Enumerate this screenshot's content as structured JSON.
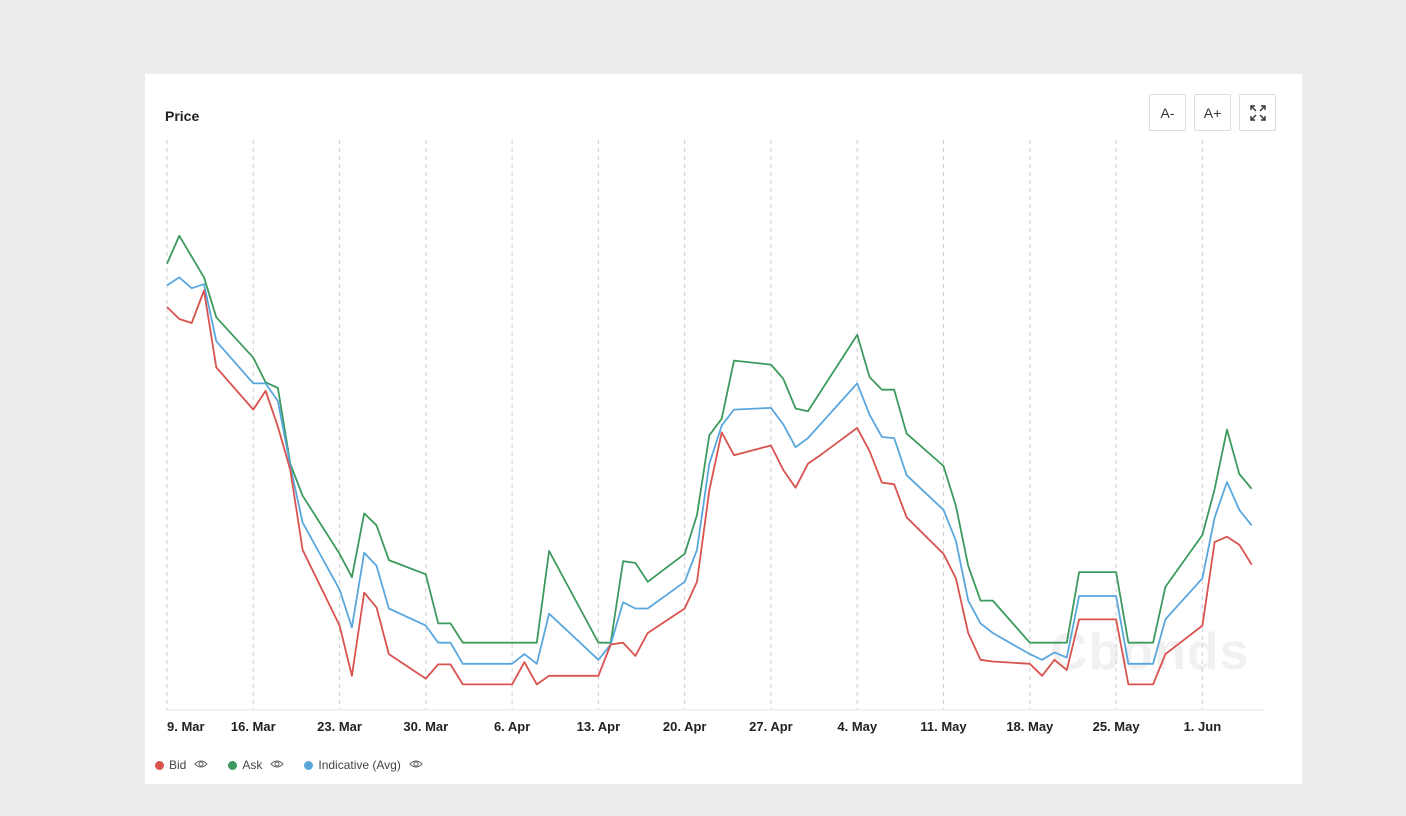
{
  "card": {
    "title": "Price"
  },
  "toolbar": {
    "font_decrease": "A-",
    "font_increase": "A+",
    "fullscreen_icon": "expand-icon"
  },
  "watermark": "Cbonds",
  "colors": {
    "bid": "#d9534f",
    "ask": "#3d9a5f",
    "indicative": "#5aa7de",
    "grid": "#cfcfcf",
    "axis": "#222222"
  },
  "chart_data": {
    "type": "line",
    "title": "Price",
    "xlabel": "",
    "ylabel": "",
    "grid": "vertical dashed",
    "legend": "bottom-left",
    "x_axis": {
      "start": "2020-03-09",
      "end": "2020-06-06",
      "ticks": [
        {
          "date": "2020-03-09",
          "label": "9. Mar"
        },
        {
          "date": "2020-03-16",
          "label": "16. Mar"
        },
        {
          "date": "2020-03-23",
          "label": "23. Mar"
        },
        {
          "date": "2020-03-30",
          "label": "30. Mar"
        },
        {
          "date": "2020-04-06",
          "label": "6. Apr"
        },
        {
          "date": "2020-04-13",
          "label": "13. Apr"
        },
        {
          "date": "2020-04-20",
          "label": "20. Apr"
        },
        {
          "date": "2020-04-27",
          "label": "27. Apr"
        },
        {
          "date": "2020-05-04",
          "label": "4. May"
        },
        {
          "date": "2020-05-11",
          "label": "11. May"
        },
        {
          "date": "2020-05-18",
          "label": "18. May"
        },
        {
          "date": "2020-05-25",
          "label": "25. May"
        },
        {
          "date": "2020-06-01",
          "label": "1. Jun"
        }
      ]
    },
    "y_axis": {
      "visible": false,
      "ylim": [
        0,
        100
      ]
    },
    "series": [
      {
        "name": "Bid",
        "color": "#d9534f",
        "points": [
          [
            "2020-03-09",
            70.7
          ],
          [
            "2020-03-10",
            68.6
          ],
          [
            "2020-03-11",
            67.9
          ],
          [
            "2020-03-12",
            73.6
          ],
          [
            "2020-03-13",
            60.1
          ],
          [
            "2020-03-16",
            52.7
          ],
          [
            "2020-03-17",
            56.0
          ],
          [
            "2020-03-18",
            49.7
          ],
          [
            "2020-03-19",
            42.1
          ],
          [
            "2020-03-20",
            28.1
          ],
          [
            "2020-03-23",
            14.8
          ],
          [
            "2020-03-24",
            6.0
          ],
          [
            "2020-03-25",
            20.6
          ],
          [
            "2020-03-26",
            18.0
          ],
          [
            "2020-03-27",
            9.8
          ],
          [
            "2020-03-30",
            5.5
          ],
          [
            "2020-03-31",
            8.0
          ],
          [
            "2020-04-01",
            8.0
          ],
          [
            "2020-04-02",
            4.5
          ],
          [
            "2020-04-03",
            4.5
          ],
          [
            "2020-04-06",
            4.5
          ],
          [
            "2020-04-07",
            8.4
          ],
          [
            "2020-04-08",
            4.5
          ],
          [
            "2020-04-09",
            6.0
          ],
          [
            "2020-04-10",
            6.0
          ],
          [
            "2020-04-13",
            6.0
          ],
          [
            "2020-04-14",
            11.5
          ],
          [
            "2020-04-15",
            11.8
          ],
          [
            "2020-04-16",
            9.5
          ],
          [
            "2020-04-17",
            13.5
          ],
          [
            "2020-04-20",
            17.8
          ],
          [
            "2020-04-21",
            22.5
          ],
          [
            "2020-04-22",
            38.5
          ],
          [
            "2020-04-23",
            48.7
          ],
          [
            "2020-04-24",
            44.7
          ],
          [
            "2020-04-27",
            46.4
          ],
          [
            "2020-04-28",
            42.1
          ],
          [
            "2020-04-29",
            39.0
          ],
          [
            "2020-04-30",
            43.2
          ],
          [
            "2020-05-01",
            44.7
          ],
          [
            "2020-05-04",
            49.5
          ],
          [
            "2020-05-05",
            45.4
          ],
          [
            "2020-05-06",
            39.9
          ],
          [
            "2020-05-07",
            39.6
          ],
          [
            "2020-05-08",
            33.8
          ],
          [
            "2020-05-11",
            27.4
          ],
          [
            "2020-05-12",
            23.1
          ],
          [
            "2020-05-13",
            13.5
          ],
          [
            "2020-05-14",
            8.8
          ],
          [
            "2020-05-15",
            8.5
          ],
          [
            "2020-05-18",
            8.1
          ],
          [
            "2020-05-19",
            6.0
          ],
          [
            "2020-05-20",
            8.8
          ],
          [
            "2020-05-21",
            7.0
          ],
          [
            "2020-05-22",
            15.9
          ],
          [
            "2020-05-25",
            15.9
          ],
          [
            "2020-05-26",
            4.5
          ],
          [
            "2020-05-27",
            4.5
          ],
          [
            "2020-05-28",
            4.5
          ],
          [
            "2020-05-29",
            9.8
          ],
          [
            "2020-06-01",
            14.8
          ],
          [
            "2020-06-02",
            29.5
          ],
          [
            "2020-06-03",
            30.4
          ],
          [
            "2020-06-04",
            29.0
          ],
          [
            "2020-06-05",
            25.5
          ]
        ]
      },
      {
        "name": "Ask",
        "color": "#3d9a5f",
        "points": [
          [
            "2020-03-09",
            78.3
          ],
          [
            "2020-03-10",
            83.2
          ],
          [
            "2020-03-12",
            75.9
          ],
          [
            "2020-03-13",
            68.9
          ],
          [
            "2020-03-16",
            61.8
          ],
          [
            "2020-03-17",
            57.5
          ],
          [
            "2020-03-18",
            56.5
          ],
          [
            "2020-03-19",
            43.2
          ],
          [
            "2020-03-20",
            37.6
          ],
          [
            "2020-03-23",
            27.4
          ],
          [
            "2020-03-24",
            23.3
          ],
          [
            "2020-03-25",
            34.5
          ],
          [
            "2020-03-26",
            32.4
          ],
          [
            "2020-03-27",
            26.3
          ],
          [
            "2020-03-30",
            23.8
          ],
          [
            "2020-03-31",
            15.2
          ],
          [
            "2020-04-01",
            15.2
          ],
          [
            "2020-04-02",
            11.8
          ],
          [
            "2020-04-06",
            11.8
          ],
          [
            "2020-04-07",
            11.8
          ],
          [
            "2020-04-08",
            11.8
          ],
          [
            "2020-04-09",
            27.9
          ],
          [
            "2020-04-13",
            11.8
          ],
          [
            "2020-04-14",
            11.8
          ],
          [
            "2020-04-15",
            26.1
          ],
          [
            "2020-04-16",
            25.8
          ],
          [
            "2020-04-17",
            22.5
          ],
          [
            "2020-04-20",
            27.4
          ],
          [
            "2020-04-21",
            34.2
          ],
          [
            "2020-04-22",
            48.2
          ],
          [
            "2020-04-23",
            51.1
          ],
          [
            "2020-04-24",
            61.3
          ],
          [
            "2020-04-27",
            60.6
          ],
          [
            "2020-04-28",
            58.1
          ],
          [
            "2020-04-29",
            52.9
          ],
          [
            "2020-04-30",
            52.4
          ],
          [
            "2020-05-04",
            65.8
          ],
          [
            "2020-05-05",
            58.4
          ],
          [
            "2020-05-06",
            56.2
          ],
          [
            "2020-05-07",
            56.2
          ],
          [
            "2020-05-08",
            48.5
          ],
          [
            "2020-05-11",
            42.8
          ],
          [
            "2020-05-12",
            35.8
          ],
          [
            "2020-05-13",
            25.3
          ],
          [
            "2020-05-14",
            19.2
          ],
          [
            "2020-05-15",
            19.2
          ],
          [
            "2020-05-18",
            11.8
          ],
          [
            "2020-05-19",
            11.8
          ],
          [
            "2020-05-20",
            11.8
          ],
          [
            "2020-05-21",
            11.8
          ],
          [
            "2020-05-22",
            24.2
          ],
          [
            "2020-05-25",
            24.2
          ],
          [
            "2020-05-26",
            11.8
          ],
          [
            "2020-05-27",
            11.8
          ],
          [
            "2020-05-28",
            11.8
          ],
          [
            "2020-05-29",
            21.6
          ],
          [
            "2020-06-01",
            30.7
          ],
          [
            "2020-06-02",
            38.8
          ],
          [
            "2020-06-03",
            49.2
          ],
          [
            "2020-06-04",
            41.4
          ],
          [
            "2020-06-05",
            38.8
          ]
        ]
      },
      {
        "name": "Indicative (Avg)",
        "color": "#5aa7de",
        "points": [
          [
            "2020-03-09",
            74.5
          ],
          [
            "2020-03-10",
            75.9
          ],
          [
            "2020-03-11",
            74.0
          ],
          [
            "2020-03-12",
            74.7
          ],
          [
            "2020-03-13",
            64.7
          ],
          [
            "2020-03-16",
            57.3
          ],
          [
            "2020-03-17",
            57.3
          ],
          [
            "2020-03-18",
            54.2
          ],
          [
            "2020-03-19",
            42.8
          ],
          [
            "2020-03-20",
            32.9
          ],
          [
            "2020-03-23",
            21.1
          ],
          [
            "2020-03-24",
            14.5
          ],
          [
            "2020-03-25",
            27.6
          ],
          [
            "2020-03-26",
            25.3
          ],
          [
            "2020-03-27",
            17.8
          ],
          [
            "2020-03-30",
            14.8
          ],
          [
            "2020-03-31",
            11.8
          ],
          [
            "2020-04-01",
            11.8
          ],
          [
            "2020-04-02",
            8.1
          ],
          [
            "2020-04-06",
            8.1
          ],
          [
            "2020-04-07",
            9.8
          ],
          [
            "2020-04-08",
            8.1
          ],
          [
            "2020-04-09",
            16.9
          ],
          [
            "2020-04-13",
            8.8
          ],
          [
            "2020-04-14",
            11.5
          ],
          [
            "2020-04-15",
            18.9
          ],
          [
            "2020-04-16",
            17.8
          ],
          [
            "2020-04-17",
            17.8
          ],
          [
            "2020-04-20",
            22.5
          ],
          [
            "2020-04-21",
            28.1
          ],
          [
            "2020-04-22",
            43.2
          ],
          [
            "2020-04-23",
            49.9
          ],
          [
            "2020-04-24",
            52.7
          ],
          [
            "2020-04-27",
            53.0
          ],
          [
            "2020-04-28",
            50.1
          ],
          [
            "2020-04-29",
            46.1
          ],
          [
            "2020-04-30",
            47.7
          ],
          [
            "2020-05-04",
            57.3
          ],
          [
            "2020-05-05",
            51.8
          ],
          [
            "2020-05-06",
            47.9
          ],
          [
            "2020-05-07",
            47.7
          ],
          [
            "2020-05-08",
            41.2
          ],
          [
            "2020-05-11",
            35.1
          ],
          [
            "2020-05-12",
            29.7
          ],
          [
            "2020-05-13",
            19.2
          ],
          [
            "2020-05-14",
            15.2
          ],
          [
            "2020-05-15",
            13.5
          ],
          [
            "2020-05-18",
            9.8
          ],
          [
            "2020-05-19",
            8.8
          ],
          [
            "2020-05-20",
            10.1
          ],
          [
            "2020-05-21",
            9.2
          ],
          [
            "2020-05-22",
            20.0
          ],
          [
            "2020-05-25",
            20.0
          ],
          [
            "2020-05-26",
            8.1
          ],
          [
            "2020-05-27",
            8.1
          ],
          [
            "2020-05-28",
            8.1
          ],
          [
            "2020-05-29",
            15.9
          ],
          [
            "2020-06-01",
            23.1
          ],
          [
            "2020-06-02",
            33.8
          ],
          [
            "2020-06-03",
            40.0
          ],
          [
            "2020-06-04",
            35.1
          ],
          [
            "2020-06-05",
            32.4
          ]
        ]
      }
    ]
  }
}
